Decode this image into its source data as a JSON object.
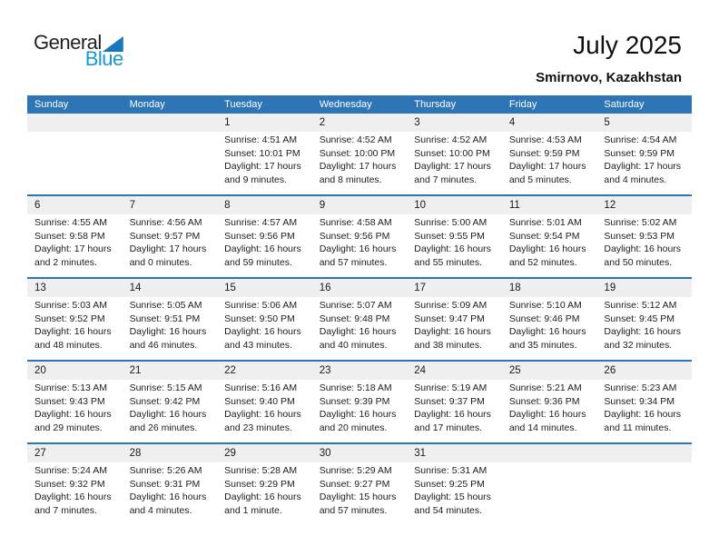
{
  "logo": {
    "text_top": "General",
    "text_bottom": "Blue"
  },
  "header": {
    "title": "July 2025",
    "location": "Smirnovo, Kazakhstan"
  },
  "colors": {
    "header_bg": "#2e75b6",
    "week_divider": "#2e75b6",
    "day_band_bg": "#efefef",
    "logo_triangle": "#1b76c0",
    "logo_blue_text": "#1998d5"
  },
  "calendar": {
    "weekday_headers": [
      "Sunday",
      "Monday",
      "Tuesday",
      "Wednesday",
      "Thursday",
      "Friday",
      "Saturday"
    ],
    "weeks": [
      [
        null,
        null,
        {
          "day": "1",
          "sunrise": "Sunrise: 4:51 AM",
          "sunset": "Sunset: 10:01 PM",
          "daylight1": "Daylight: 17 hours",
          "daylight2": "and 9 minutes."
        },
        {
          "day": "2",
          "sunrise": "Sunrise: 4:52 AM",
          "sunset": "Sunset: 10:00 PM",
          "daylight1": "Daylight: 17 hours",
          "daylight2": "and 8 minutes."
        },
        {
          "day": "3",
          "sunrise": "Sunrise: 4:52 AM",
          "sunset": "Sunset: 10:00 PM",
          "daylight1": "Daylight: 17 hours",
          "daylight2": "and 7 minutes."
        },
        {
          "day": "4",
          "sunrise": "Sunrise: 4:53 AM",
          "sunset": "Sunset: 9:59 PM",
          "daylight1": "Daylight: 17 hours",
          "daylight2": "and 5 minutes."
        },
        {
          "day": "5",
          "sunrise": "Sunrise: 4:54 AM",
          "sunset": "Sunset: 9:59 PM",
          "daylight1": "Daylight: 17 hours",
          "daylight2": "and 4 minutes."
        }
      ],
      [
        {
          "day": "6",
          "sunrise": "Sunrise: 4:55 AM",
          "sunset": "Sunset: 9:58 PM",
          "daylight1": "Daylight: 17 hours",
          "daylight2": "and 2 minutes."
        },
        {
          "day": "7",
          "sunrise": "Sunrise: 4:56 AM",
          "sunset": "Sunset: 9:57 PM",
          "daylight1": "Daylight: 17 hours",
          "daylight2": "and 0 minutes."
        },
        {
          "day": "8",
          "sunrise": "Sunrise: 4:57 AM",
          "sunset": "Sunset: 9:56 PM",
          "daylight1": "Daylight: 16 hours",
          "daylight2": "and 59 minutes."
        },
        {
          "day": "9",
          "sunrise": "Sunrise: 4:58 AM",
          "sunset": "Sunset: 9:56 PM",
          "daylight1": "Daylight: 16 hours",
          "daylight2": "and 57 minutes."
        },
        {
          "day": "10",
          "sunrise": "Sunrise: 5:00 AM",
          "sunset": "Sunset: 9:55 PM",
          "daylight1": "Daylight: 16 hours",
          "daylight2": "and 55 minutes."
        },
        {
          "day": "11",
          "sunrise": "Sunrise: 5:01 AM",
          "sunset": "Sunset: 9:54 PM",
          "daylight1": "Daylight: 16 hours",
          "daylight2": "and 52 minutes."
        },
        {
          "day": "12",
          "sunrise": "Sunrise: 5:02 AM",
          "sunset": "Sunset: 9:53 PM",
          "daylight1": "Daylight: 16 hours",
          "daylight2": "and 50 minutes."
        }
      ],
      [
        {
          "day": "13",
          "sunrise": "Sunrise: 5:03 AM",
          "sunset": "Sunset: 9:52 PM",
          "daylight1": "Daylight: 16 hours",
          "daylight2": "and 48 minutes."
        },
        {
          "day": "14",
          "sunrise": "Sunrise: 5:05 AM",
          "sunset": "Sunset: 9:51 PM",
          "daylight1": "Daylight: 16 hours",
          "daylight2": "and 46 minutes."
        },
        {
          "day": "15",
          "sunrise": "Sunrise: 5:06 AM",
          "sunset": "Sunset: 9:50 PM",
          "daylight1": "Daylight: 16 hours",
          "daylight2": "and 43 minutes."
        },
        {
          "day": "16",
          "sunrise": "Sunrise: 5:07 AM",
          "sunset": "Sunset: 9:48 PM",
          "daylight1": "Daylight: 16 hours",
          "daylight2": "and 40 minutes."
        },
        {
          "day": "17",
          "sunrise": "Sunrise: 5:09 AM",
          "sunset": "Sunset: 9:47 PM",
          "daylight1": "Daylight: 16 hours",
          "daylight2": "and 38 minutes."
        },
        {
          "day": "18",
          "sunrise": "Sunrise: 5:10 AM",
          "sunset": "Sunset: 9:46 PM",
          "daylight1": "Daylight: 16 hours",
          "daylight2": "and 35 minutes."
        },
        {
          "day": "19",
          "sunrise": "Sunrise: 5:12 AM",
          "sunset": "Sunset: 9:45 PM",
          "daylight1": "Daylight: 16 hours",
          "daylight2": "and 32 minutes."
        }
      ],
      [
        {
          "day": "20",
          "sunrise": "Sunrise: 5:13 AM",
          "sunset": "Sunset: 9:43 PM",
          "daylight1": "Daylight: 16 hours",
          "daylight2": "and 29 minutes."
        },
        {
          "day": "21",
          "sunrise": "Sunrise: 5:15 AM",
          "sunset": "Sunset: 9:42 PM",
          "daylight1": "Daylight: 16 hours",
          "daylight2": "and 26 minutes."
        },
        {
          "day": "22",
          "sunrise": "Sunrise: 5:16 AM",
          "sunset": "Sunset: 9:40 PM",
          "daylight1": "Daylight: 16 hours",
          "daylight2": "and 23 minutes."
        },
        {
          "day": "23",
          "sunrise": "Sunrise: 5:18 AM",
          "sunset": "Sunset: 9:39 PM",
          "daylight1": "Daylight: 16 hours",
          "daylight2": "and 20 minutes."
        },
        {
          "day": "24",
          "sunrise": "Sunrise: 5:19 AM",
          "sunset": "Sunset: 9:37 PM",
          "daylight1": "Daylight: 16 hours",
          "daylight2": "and 17 minutes."
        },
        {
          "day": "25",
          "sunrise": "Sunrise: 5:21 AM",
          "sunset": "Sunset: 9:36 PM",
          "daylight1": "Daylight: 16 hours",
          "daylight2": "and 14 minutes."
        },
        {
          "day": "26",
          "sunrise": "Sunrise: 5:23 AM",
          "sunset": "Sunset: 9:34 PM",
          "daylight1": "Daylight: 16 hours",
          "daylight2": "and 11 minutes."
        }
      ],
      [
        {
          "day": "27",
          "sunrise": "Sunrise: 5:24 AM",
          "sunset": "Sunset: 9:32 PM",
          "daylight1": "Daylight: 16 hours",
          "daylight2": "and 7 minutes."
        },
        {
          "day": "28",
          "sunrise": "Sunrise: 5:26 AM",
          "sunset": "Sunset: 9:31 PM",
          "daylight1": "Daylight: 16 hours",
          "daylight2": "and 4 minutes."
        },
        {
          "day": "29",
          "sunrise": "Sunrise: 5:28 AM",
          "sunset": "Sunset: 9:29 PM",
          "daylight1": "Daylight: 16 hours",
          "daylight2": "and 1 minute."
        },
        {
          "day": "30",
          "sunrise": "Sunrise: 5:29 AM",
          "sunset": "Sunset: 9:27 PM",
          "daylight1": "Daylight: 15 hours",
          "daylight2": "and 57 minutes."
        },
        {
          "day": "31",
          "sunrise": "Sunrise: 5:31 AM",
          "sunset": "Sunset: 9:25 PM",
          "daylight1": "Daylight: 15 hours",
          "daylight2": "and 54 minutes."
        },
        null,
        null
      ]
    ]
  }
}
